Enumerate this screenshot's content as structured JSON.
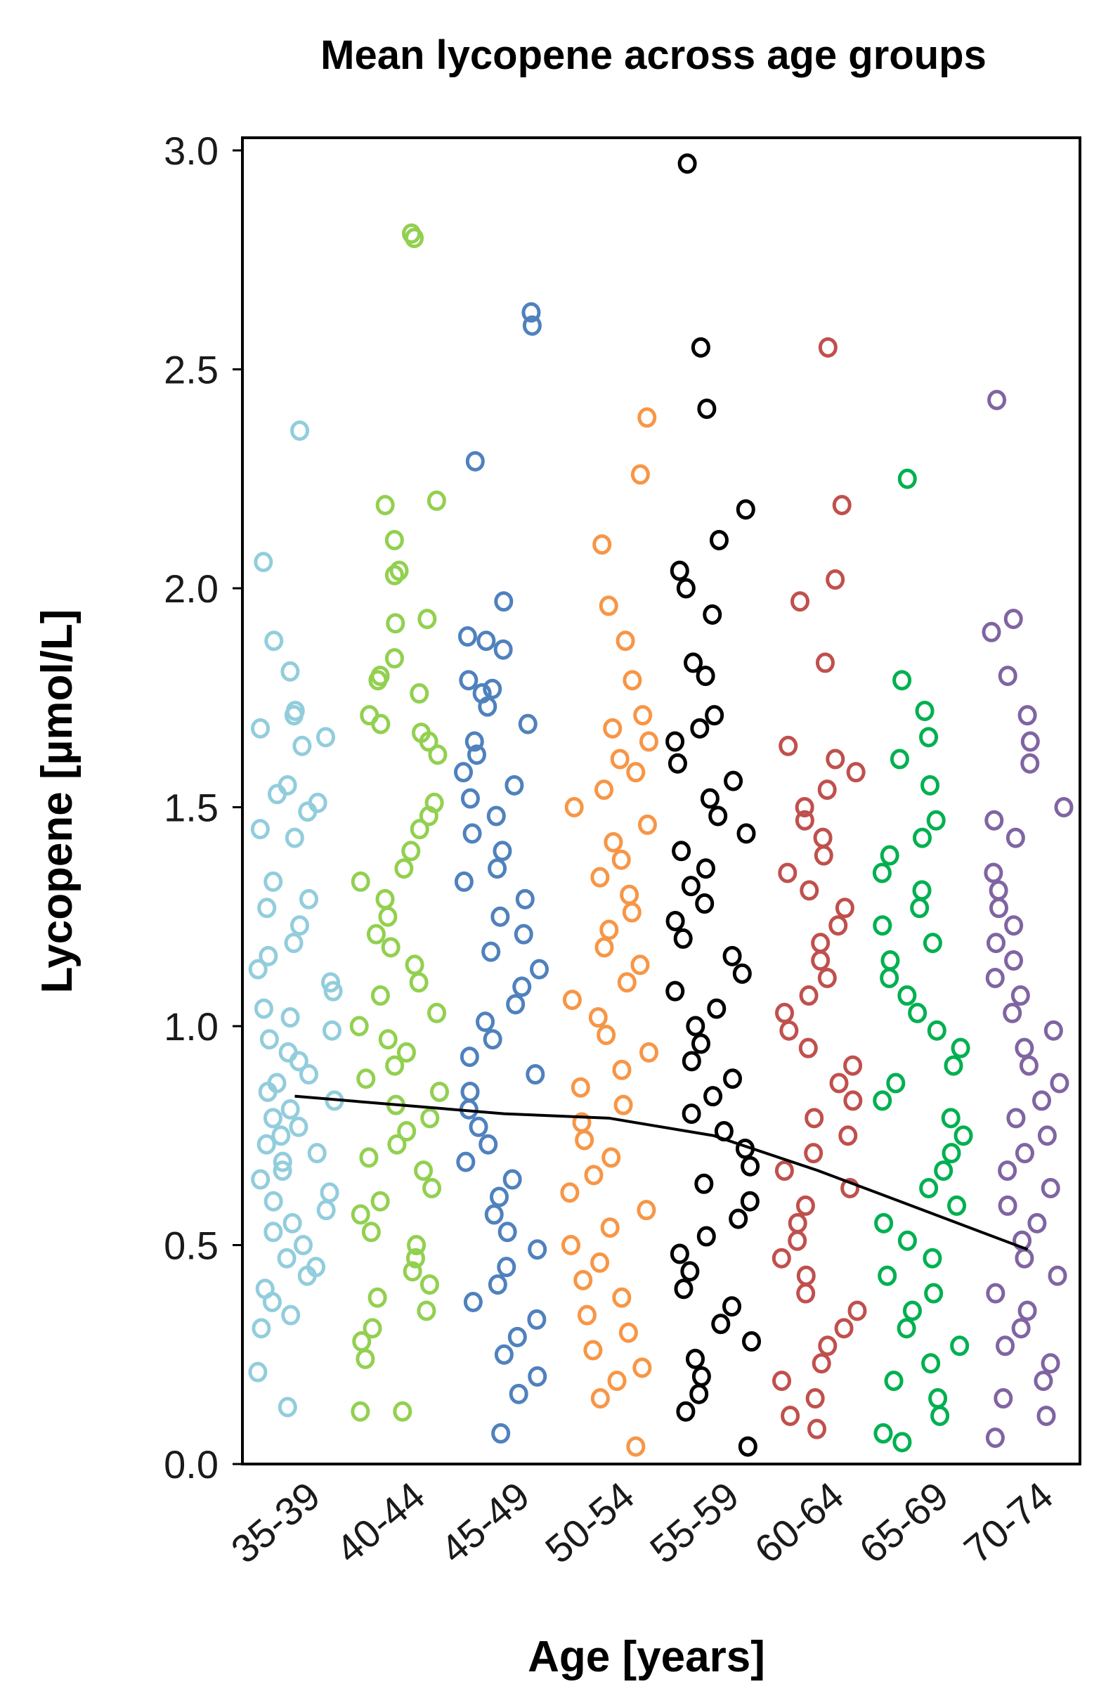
{
  "chart_data": {
    "type": "scatter",
    "title": "Mean lycopene across age groups",
    "xlabel": "Age [years]",
    "ylabel": "Lycopene [µmol/L]",
    "ylim": [
      0,
      3
    ],
    "yticks": [
      "0.0",
      "0.5",
      "1.0",
      "1.5",
      "2.0",
      "2.5",
      "3.0"
    ],
    "categories": [
      "35-39",
      "40-44",
      "45-49",
      "50-54",
      "55-59",
      "60-64",
      "65-69",
      "70-74"
    ],
    "colors": [
      "#92cddc",
      "#92d050",
      "#4f81bd",
      "#f79646",
      "#000000",
      "#c0504d",
      "#00b050",
      "#8064a2"
    ],
    "grid": false,
    "legend": "none",
    "series": [
      {
        "values": [
          1.71,
          2.36,
          2.06,
          1.88,
          1.81,
          1.72,
          1.68,
          1.66,
          1.64,
          1.55,
          1.53,
          1.51,
          1.49,
          1.45,
          1.43,
          1.33,
          1.29,
          1.27,
          1.23,
          1.19,
          1.16,
          1.13,
          1.1,
          1.08,
          1.04,
          1.02,
          0.99,
          0.97,
          0.94,
          0.92,
          0.89,
          0.87,
          0.85,
          0.83,
          0.81,
          0.79,
          0.77,
          0.75,
          0.73,
          0.71,
          0.69,
          0.67,
          0.65,
          0.62,
          0.6,
          0.58,
          0.55,
          0.53,
          0.5,
          0.47,
          0.45,
          0.43,
          0.4,
          0.37,
          0.34,
          0.31,
          0.21,
          0.13
        ]
      },
      {
        "values": [
          2.8,
          2.81,
          2.2,
          2.19,
          2.11,
          2.04,
          2.03,
          1.93,
          1.92,
          1.84,
          1.8,
          1.79,
          1.76,
          1.71,
          1.69,
          1.67,
          1.65,
          1.62,
          1.51,
          1.48,
          1.45,
          1.4,
          1.36,
          1.33,
          1.29,
          1.25,
          1.21,
          1.18,
          1.14,
          1.1,
          1.07,
          1.03,
          1.0,
          0.97,
          0.94,
          0.91,
          0.88,
          0.85,
          0.82,
          0.79,
          0.76,
          0.73,
          0.7,
          0.67,
          0.63,
          0.6,
          0.57,
          0.53,
          0.5,
          0.47,
          0.44,
          0.41,
          0.38,
          0.35,
          0.31,
          0.28,
          0.24,
          0.12,
          0.12
        ]
      },
      {
        "values": [
          2.63,
          2.6,
          2.29,
          1.97,
          1.89,
          1.88,
          1.86,
          1.79,
          1.77,
          1.76,
          1.73,
          1.69,
          1.65,
          1.62,
          1.58,
          1.55,
          1.52,
          1.48,
          1.44,
          1.4,
          1.36,
          1.33,
          1.29,
          1.25,
          1.21,
          1.17,
          1.13,
          1.09,
          1.05,
          1.01,
          0.97,
          0.93,
          0.89,
          0.85,
          0.81,
          0.77,
          0.73,
          0.69,
          0.65,
          0.61,
          0.57,
          0.53,
          0.49,
          0.45,
          0.41,
          0.37,
          0.33,
          0.29,
          0.25,
          0.2,
          0.16,
          0.07
        ]
      },
      {
        "values": [
          2.39,
          2.26,
          2.1,
          1.96,
          1.88,
          1.79,
          1.71,
          1.68,
          1.65,
          1.61,
          1.58,
          1.54,
          1.5,
          1.46,
          1.42,
          1.38,
          1.34,
          1.3,
          1.26,
          1.22,
          1.18,
          1.14,
          1.1,
          1.06,
          1.02,
          0.98,
          0.94,
          0.9,
          0.86,
          0.82,
          0.78,
          0.74,
          0.7,
          0.66,
          0.62,
          0.58,
          0.54,
          0.5,
          0.46,
          0.42,
          0.38,
          0.34,
          0.3,
          0.26,
          0.22,
          0.19,
          0.15,
          0.04
        ]
      },
      {
        "values": [
          2.97,
          2.55,
          2.41,
          2.18,
          2.11,
          2.04,
          2.0,
          1.94,
          1.83,
          1.8,
          1.71,
          1.68,
          1.65,
          1.6,
          1.56,
          1.52,
          1.48,
          1.44,
          1.4,
          1.36,
          1.32,
          1.28,
          1.24,
          1.2,
          1.16,
          1.12,
          1.08,
          1.04,
          1.0,
          0.96,
          0.92,
          0.88,
          0.84,
          0.8,
          0.76,
          0.72,
          0.68,
          0.64,
          0.6,
          0.56,
          0.52,
          0.48,
          0.44,
          0.4,
          0.36,
          0.32,
          0.28,
          0.24,
          0.2,
          0.16,
          0.12,
          0.04
        ]
      },
      {
        "values": [
          2.55,
          2.19,
          2.02,
          1.97,
          1.83,
          1.64,
          1.61,
          1.58,
          1.54,
          1.5,
          1.47,
          1.43,
          1.39,
          1.35,
          1.31,
          1.27,
          1.23,
          1.19,
          1.15,
          1.11,
          1.07,
          1.03,
          0.99,
          0.95,
          0.91,
          0.87,
          0.83,
          0.79,
          0.75,
          0.71,
          0.67,
          0.63,
          0.59,
          0.55,
          0.51,
          0.47,
          0.43,
          0.39,
          0.35,
          0.31,
          0.27,
          0.23,
          0.19,
          0.15,
          0.11,
          0.08
        ]
      },
      {
        "values": [
          2.25,
          1.79,
          1.72,
          1.66,
          1.61,
          1.55,
          1.47,
          1.43,
          1.39,
          1.35,
          1.31,
          1.27,
          1.23,
          1.19,
          1.15,
          1.11,
          1.07,
          1.03,
          0.99,
          0.95,
          0.91,
          0.87,
          0.83,
          0.79,
          0.75,
          0.71,
          0.67,
          0.63,
          0.59,
          0.55,
          0.51,
          0.47,
          0.43,
          0.39,
          0.35,
          0.31,
          0.27,
          0.23,
          0.19,
          0.15,
          0.11,
          0.07,
          0.05
        ]
      },
      {
        "values": [
          2.43,
          1.93,
          1.9,
          1.8,
          1.71,
          1.65,
          1.6,
          1.5,
          1.47,
          1.43,
          1.35,
          1.31,
          1.27,
          1.23,
          1.19,
          1.15,
          1.11,
          1.07,
          1.03,
          0.99,
          0.95,
          0.91,
          0.87,
          0.83,
          0.79,
          0.75,
          0.71,
          0.67,
          0.63,
          0.59,
          0.55,
          0.51,
          0.47,
          0.43,
          0.39,
          0.35,
          0.31,
          0.27,
          0.23,
          0.19,
          0.15,
          0.11,
          0.06
        ]
      }
    ],
    "trend_line": {
      "x": [
        "35-39",
        "40-44",
        "45-49",
        "50-54",
        "55-59",
        "60-64",
        "65-69",
        "70-74"
      ],
      "values": [
        0.84,
        0.82,
        0.8,
        0.79,
        0.75,
        0.67,
        0.58,
        0.49
      ]
    }
  }
}
